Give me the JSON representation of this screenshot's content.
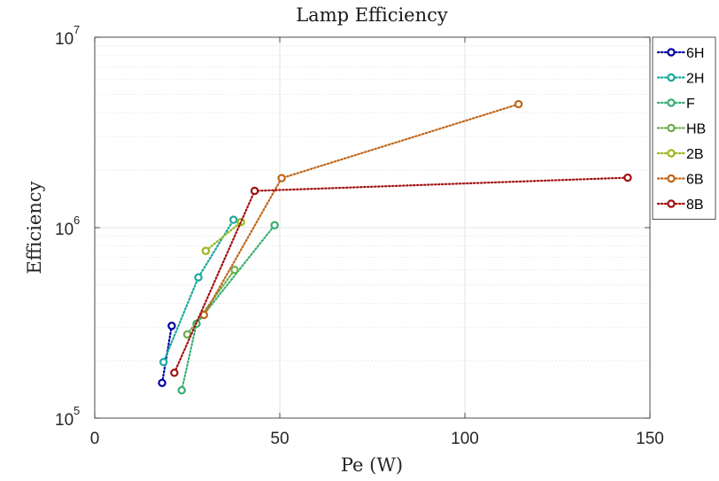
{
  "chart_data": {
    "type": "line",
    "title": "Lamp Efficiency",
    "xlabel": "Pe (W)",
    "ylabel": "Efficiency",
    "xlim": [
      0,
      150
    ],
    "ylim": [
      100000,
      10000000
    ],
    "yscale": "log",
    "grid": true,
    "legend_position": "outside-top-right",
    "x_ticks": [
      {
        "value": 0,
        "label": "0"
      },
      {
        "value": 50,
        "label": "50"
      },
      {
        "value": 100,
        "label": "100"
      },
      {
        "value": 150,
        "label": "150"
      }
    ],
    "y_ticks": [
      {
        "value": 100000,
        "base": "10",
        "exp": "5"
      },
      {
        "value": 1000000,
        "base": "10",
        "exp": "6"
      },
      {
        "value": 10000000,
        "base": "10",
        "exp": "7"
      }
    ],
    "series": [
      {
        "name": "6H",
        "color": "#0000a0",
        "points": [
          [
            18.2,
            153000
          ],
          [
            20.8,
            305000
          ]
        ]
      },
      {
        "name": "2H",
        "color": "#1aa8a0",
        "points": [
          [
            18.6,
            197000
          ],
          [
            28.0,
            548000
          ],
          [
            37.5,
            1100000
          ]
        ]
      },
      {
        "name": "F",
        "color": "#3aae72",
        "points": [
          [
            23.5,
            140000
          ],
          [
            27.5,
            313000
          ],
          [
            48.6,
            1030000
          ]
        ]
      },
      {
        "name": "HB",
        "color": "#6ab04c",
        "points": [
          [
            25.0,
            275000
          ],
          [
            37.8,
            600000
          ]
        ]
      },
      {
        "name": "2B",
        "color": "#9ab820",
        "points": [
          [
            30.0,
            755000
          ],
          [
            39.5,
            1070000
          ]
        ]
      },
      {
        "name": "6B",
        "color": "#c0661a",
        "points": [
          [
            29.5,
            348000
          ],
          [
            50.5,
            1820000
          ],
          [
            114.5,
            4450000
          ]
        ]
      },
      {
        "name": "8B",
        "color": "#a01010",
        "points": [
          [
            21.5,
            173000
          ],
          [
            43.2,
            1560000
          ],
          [
            144.0,
            1830000
          ]
        ]
      }
    ]
  }
}
